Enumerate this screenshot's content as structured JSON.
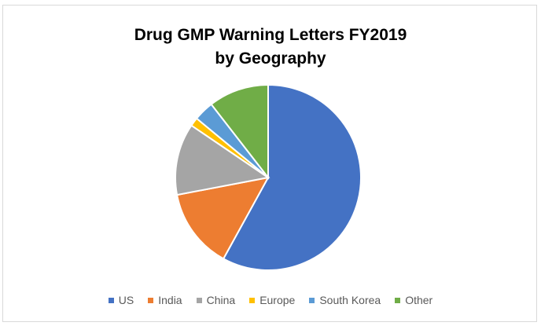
{
  "chart_data": {
    "type": "pie",
    "title": "Drug GMP Warning Letters FY2019",
    "subtitle": "by Geography",
    "categories": [
      "US",
      "India",
      "China",
      "Europe",
      "South Korea",
      "Other"
    ],
    "values": [
      58,
      14,
      12.5,
      1.5,
      3.5,
      10.5
    ],
    "colors": [
      "#4472C4",
      "#ED7D31",
      "#A5A5A5",
      "#FFC000",
      "#5B9BD5",
      "#70AD47"
    ],
    "legend_position": "bottom"
  }
}
